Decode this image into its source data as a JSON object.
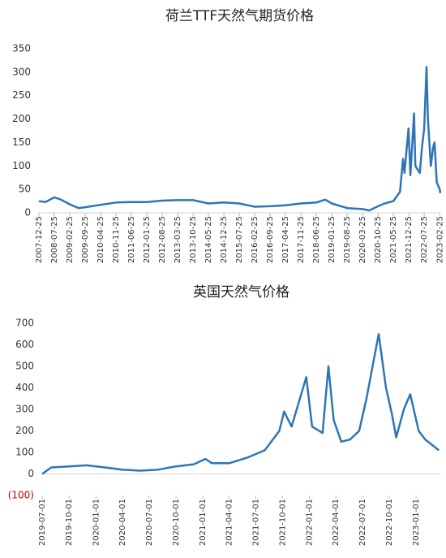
{
  "chart_data": [
    {
      "type": "line",
      "title": "荷兰TTF天然气期货价格",
      "x": [
        "2007-12-25",
        "2008-03-25",
        "2008-07-25",
        "2008-10-25",
        "2009-02-25",
        "2009-06-25",
        "2009-09-25",
        "2010-04-25",
        "2010-11-25",
        "2011-06-25",
        "2012-01-25",
        "2012-08-25",
        "2013-03-25",
        "2013-10-25",
        "2014-05-25",
        "2014-12-25",
        "2015-07-25",
        "2016-02-25",
        "2016-09-25",
        "2017-04-25",
        "2017-11-25",
        "2018-06-25",
        "2018-10-25",
        "2019-01-25",
        "2019-08-25",
        "2020-03-25",
        "2020-06-25",
        "2020-10-25",
        "2021-01-25",
        "2021-05-25",
        "2021-08-25",
        "2021-10-05",
        "2021-10-25",
        "2021-12-21",
        "2022-01-15",
        "2022-03-07",
        "2022-03-25",
        "2022-05-25",
        "2022-06-25",
        "2022-07-25",
        "2022-08-26",
        "2022-09-15",
        "2022-10-25",
        "2022-11-25",
        "2022-12-15",
        "2023-01-15",
        "2023-02-25",
        "2023-03-05"
      ],
      "series": [
        {
          "color": "#2e75b6",
          "values": [
            25,
            23,
            33,
            28,
            18,
            10,
            12,
            17,
            22,
            23,
            23,
            26,
            27,
            27,
            20,
            22,
            20,
            13,
            14,
            16,
            20,
            22,
            28,
            20,
            10,
            8,
            5,
            14,
            20,
            25,
            45,
            115,
            85,
            180,
            80,
            212,
            100,
            85,
            140,
            180,
            311,
            200,
            100,
            140,
            150,
            65,
            50,
            42
          ]
        }
      ],
      "xlim": [
        "2007-12-25",
        "2023-03-05"
      ],
      "xticks": [
        "2007-12-25",
        "2008-07-25",
        "2009-02-25",
        "2009-09-25",
        "2010-04-25",
        "2010-11-25",
        "2011-06-25",
        "2012-01-25",
        "2012-08-25",
        "2013-03-25",
        "2013-10-25",
        "2014-05-25",
        "2014-12-25",
        "2015-07-25",
        "2016-02-25",
        "2016-09-25",
        "2017-04-25",
        "2017-11-25",
        "2018-06-25",
        "2019-01-25",
        "2019-08-25",
        "2020-03-25",
        "2020-10-25",
        "2021-05-25",
        "2021-12-25",
        "2022-07-25",
        "2023-02-25"
      ],
      "ylim": [
        0,
        350
      ],
      "yticks": [
        0,
        50,
        100,
        150,
        200,
        250,
        300,
        350
      ],
      "grid": false
    },
    {
      "type": "line",
      "title": "英国天然气价格",
      "x": [
        "2019-07-01",
        "2019-08-01",
        "2019-10-01",
        "2019-12-01",
        "2020-02-01",
        "2020-04-01",
        "2020-06-01",
        "2020-08-01",
        "2020-10-01",
        "2020-12-01",
        "2021-01-10",
        "2021-02-01",
        "2021-04-01",
        "2021-06-01",
        "2021-08-01",
        "2021-09-20",
        "2021-10-06",
        "2021-11-01",
        "2021-12-21",
        "2022-01-10",
        "2022-02-15",
        "2022-03-07",
        "2022-03-25",
        "2022-04-20",
        "2022-05-20",
        "2022-06-20",
        "2022-07-15",
        "2022-08-26",
        "2022-09-20",
        "2022-10-10",
        "2022-10-25",
        "2022-11-20",
        "2022-12-12",
        "2023-01-10",
        "2023-02-01",
        "2023-03-01",
        "2023-03-20"
      ],
      "series": [
        {
          "color": "#2e75b6",
          "values": [
            0,
            30,
            35,
            40,
            30,
            20,
            15,
            20,
            35,
            45,
            70,
            50,
            50,
            75,
            110,
            200,
            290,
            220,
            450,
            220,
            190,
            500,
            250,
            150,
            160,
            200,
            350,
            650,
            400,
            280,
            170,
            300,
            370,
            200,
            160,
            130,
            110
          ]
        }
      ],
      "xlim": [
        "2019-07-01",
        "2023-03-25"
      ],
      "xticks": [
        "2019-07-01",
        "2019-10-01",
        "2020-01-01",
        "2020-04-01",
        "2020-07-01",
        "2020-10-01",
        "2021-01-01",
        "2021-04-01",
        "2021-07-01",
        "2021-10-01",
        "2022-01-01",
        "2022-04-01",
        "2022-07-01",
        "2022-10-01",
        "2023-01-01"
      ],
      "ylim": [
        -100,
        700
      ],
      "yticks": [
        {
          "value": -100,
          "label": "(100)",
          "color": "#c00000"
        },
        0,
        100,
        200,
        300,
        400,
        500,
        600,
        700
      ],
      "grid": false
    }
  ]
}
